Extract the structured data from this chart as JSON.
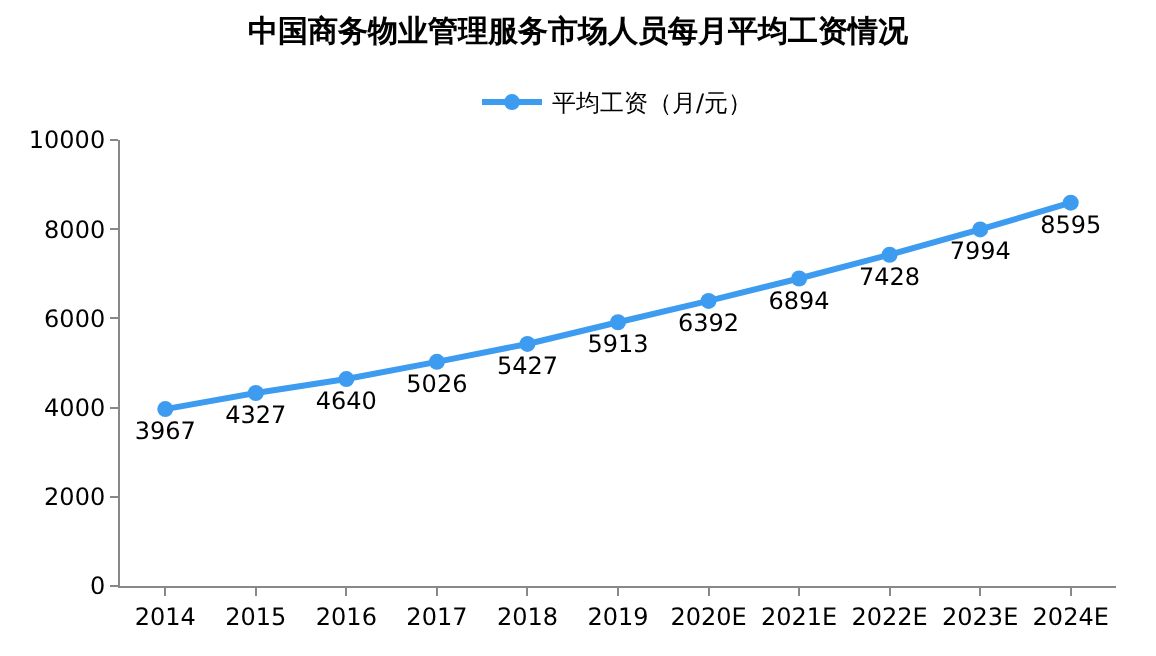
{
  "chart_data": {
    "type": "line",
    "title": "中国商务物业管理服务市场人员每月平均工资情况",
    "categories": [
      "2014",
      "2015",
      "2016",
      "2017",
      "2018",
      "2019",
      "2020E",
      "2021E",
      "2022E",
      "2023E",
      "2024E"
    ],
    "series": [
      {
        "name": "平均工资（月/元）",
        "color": "#3d9cf0",
        "values": [
          3967,
          4327,
          4640,
          5026,
          5427,
          5913,
          6392,
          6894,
          7428,
          7994,
          8595
        ]
      }
    ],
    "ylim": [
      0,
      10000
    ],
    "yticks": [
      0,
      2000,
      4000,
      6000,
      8000,
      10000
    ],
    "grid": false,
    "legend": "top",
    "marker": "circle",
    "line_style": "solid",
    "data_labels": true
  }
}
